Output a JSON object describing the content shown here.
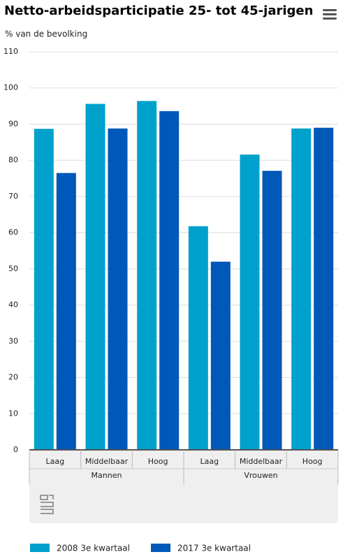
{
  "chart_data": {
    "type": "bar",
    "title": "Netto-arbeidsparticipatie 25- tot 45-jarigen",
    "y_label": "% van de bevolking",
    "groups": [
      {
        "name": "Mannen",
        "categories": [
          "Laag",
          "Middelbaar",
          "Hoog"
        ]
      },
      {
        "name": "Vrouwen",
        "categories": [
          "Laag",
          "Middelbaar",
          "Hoog"
        ]
      }
    ],
    "series": [
      {
        "name": "2008 3e kwartaal",
        "color": "#00a1cd",
        "values": [
          88.7,
          95.6,
          96.4,
          61.8,
          81.6,
          88.8
        ]
      },
      {
        "name": "2017 3e kwartaal",
        "color": "#0058b8",
        "values": [
          76.5,
          88.8,
          93.6,
          52.0,
          77.1,
          89.0
        ]
      }
    ],
    "ylim": [
      0,
      110
    ],
    "yticks": [
      0,
      10,
      20,
      30,
      40,
      50,
      60,
      70,
      80,
      90,
      100,
      110
    ],
    "grid": true,
    "legend": "bottom"
  }
}
